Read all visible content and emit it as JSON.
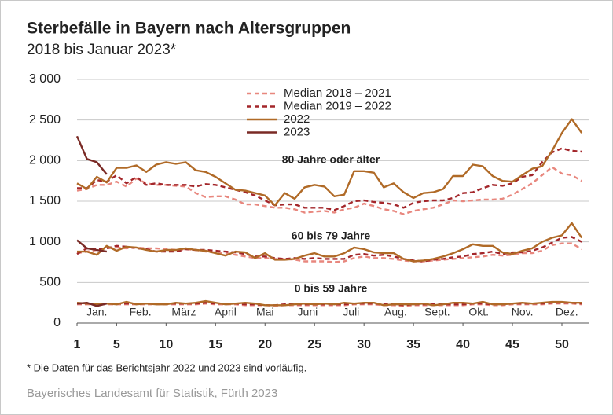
{
  "chart_data": {
    "type": "line",
    "title": "Sterbefälle in Bayern nach Altersgruppen",
    "subtitle": "2018 bis Januar 2023*",
    "footnote": "* Die Daten für das Berichtsjahr 2022 und 2023 sind vorläufig.",
    "source": "Bayerisches Landesamt für Statistik, Fürth 2023",
    "group_labels": [
      "80 Jahre oder älter",
      "60 bis 79 Jahre",
      "0 bis 59 Jahre"
    ],
    "x": [
      1,
      2,
      3,
      4,
      5,
      6,
      7,
      8,
      9,
      10,
      11,
      12,
      13,
      14,
      15,
      16,
      17,
      18,
      19,
      20,
      21,
      22,
      23,
      24,
      25,
      26,
      27,
      28,
      29,
      30,
      31,
      32,
      33,
      34,
      35,
      36,
      37,
      38,
      39,
      40,
      41,
      42,
      43,
      44,
      45,
      46,
      47,
      48,
      49,
      50,
      51,
      52
    ],
    "xlim": [
      1,
      52.7
    ],
    "xticks": [
      1,
      5,
      10,
      15,
      20,
      25,
      30,
      35,
      40,
      45,
      50
    ],
    "months": [
      {
        "value": 3,
        "label": "Jan."
      },
      {
        "value": 7.4,
        "label": "Feb."
      },
      {
        "value": 11.8,
        "label": "März"
      },
      {
        "value": 16,
        "label": "April"
      },
      {
        "value": 20,
        "label": "Mai"
      },
      {
        "value": 24.3,
        "label": "Juni"
      },
      {
        "value": 28.7,
        "label": "Juli"
      },
      {
        "value": 33.2,
        "label": "Aug."
      },
      {
        "value": 37.4,
        "label": "Sept."
      },
      {
        "value": 41.6,
        "label": "Okt."
      },
      {
        "value": 46,
        "label": "Nov."
      },
      {
        "value": 50.5,
        "label": "Dez."
      }
    ],
    "ylim": [
      0,
      3000
    ],
    "yticks": [
      0,
      500,
      {
        "value": 1000,
        "label": "1 000"
      },
      {
        "value": 1500,
        "label": "1 500"
      },
      {
        "value": 2000,
        "label": "2 000"
      },
      {
        "value": 2500,
        "label": "2 500"
      },
      {
        "value": 3000,
        "label": "3 000"
      }
    ],
    "grid": true,
    "series": [
      {
        "name": "Median 2018 – 2021",
        "color": "#e8877e",
        "dashed": true,
        "values": [
          [
            1630,
            1650,
            1700,
            1700,
            1740,
            1680,
            1780,
            1720,
            1700,
            1700,
            1690,
            1680,
            1600,
            1550,
            1560,
            1560,
            1520,
            1460,
            1460,
            1440,
            1420,
            1420,
            1400,
            1360,
            1370,
            1380,
            1360,
            1400,
            1420,
            1470,
            1440,
            1400,
            1380,
            1340,
            1380,
            1400,
            1420,
            1460,
            1510,
            1500,
            1510,
            1520,
            1520,
            1530,
            1580,
            1650,
            1720,
            1820,
            1920,
            1840,
            1820,
            1750
          ],
          [
            860,
            880,
            900,
            920,
            930,
            920,
            930,
            920,
            920,
            910,
            900,
            910,
            900,
            880,
            870,
            860,
            840,
            820,
            800,
            800,
            790,
            790,
            780,
            760,
            760,
            760,
            750,
            760,
            800,
            820,
            800,
            800,
            790,
            770,
            760,
            760,
            770,
            780,
            790,
            800,
            810,
            820,
            840,
            830,
            840,
            860,
            860,
            890,
            960,
            980,
            980,
            910
          ],
          [
            230,
            230,
            230,
            230,
            230,
            230,
            230,
            230,
            230,
            230,
            230,
            230,
            230,
            240,
            230,
            230,
            230,
            220,
            220,
            220,
            210,
            220,
            220,
            220,
            220,
            220,
            220,
            220,
            230,
            230,
            230,
            220,
            220,
            210,
            220,
            220,
            220,
            220,
            220,
            220,
            230,
            230,
            220,
            220,
            230,
            230,
            230,
            230,
            240,
            240,
            240,
            230
          ]
        ]
      },
      {
        "name": "Median 2019 – 2022",
        "color": "#a3262a",
        "dashed": true,
        "values": [
          [
            1660,
            1660,
            1760,
            1740,
            1820,
            1720,
            1800,
            1700,
            1720,
            1700,
            1700,
            1700,
            1680,
            1710,
            1700,
            1670,
            1640,
            1610,
            1570,
            1510,
            1450,
            1460,
            1460,
            1420,
            1420,
            1420,
            1390,
            1440,
            1500,
            1510,
            1490,
            1480,
            1460,
            1420,
            1480,
            1500,
            1510,
            1510,
            1540,
            1600,
            1610,
            1660,
            1700,
            1690,
            1720,
            1800,
            1820,
            1980,
            2100,
            2150,
            2120,
            2110
          ],
          [
            850,
            920,
            910,
            920,
            950,
            940,
            920,
            910,
            880,
            880,
            880,
            910,
            900,
            900,
            890,
            880,
            870,
            850,
            820,
            820,
            800,
            790,
            800,
            790,
            800,
            790,
            790,
            790,
            840,
            850,
            830,
            840,
            820,
            790,
            770,
            760,
            780,
            790,
            810,
            820,
            850,
            860,
            880,
            850,
            870,
            870,
            890,
            930,
            990,
            1050,
            1060,
            1000
          ],
          [
            240,
            240,
            240,
            240,
            240,
            240,
            240,
            240,
            240,
            240,
            240,
            240,
            240,
            250,
            240,
            240,
            240,
            230,
            230,
            220,
            220,
            230,
            230,
            230,
            230,
            230,
            230,
            230,
            240,
            240,
            240,
            230,
            230,
            220,
            230,
            230,
            230,
            230,
            230,
            230,
            240,
            240,
            230,
            230,
            240,
            240,
            240,
            240,
            250,
            250,
            250,
            240
          ]
        ]
      },
      {
        "name": "2022",
        "color": "#b06a27",
        "dashed": false,
        "values": [
          [
            1720,
            1650,
            1800,
            1730,
            1910,
            1910,
            1940,
            1860,
            1950,
            1980,
            1960,
            1980,
            1880,
            1860,
            1800,
            1720,
            1640,
            1630,
            1600,
            1570,
            1450,
            1600,
            1530,
            1670,
            1700,
            1680,
            1560,
            1580,
            1870,
            1870,
            1850,
            1670,
            1720,
            1610,
            1540,
            1600,
            1610,
            1650,
            1810,
            1810,
            1950,
            1930,
            1810,
            1750,
            1740,
            1820,
            1900,
            1930,
            2120,
            2340,
            2510,
            2340
          ],
          [
            880,
            880,
            840,
            950,
            890,
            940,
            930,
            900,
            880,
            900,
            900,
            920,
            900,
            890,
            860,
            830,
            880,
            870,
            800,
            860,
            780,
            780,
            790,
            830,
            860,
            820,
            820,
            860,
            930,
            910,
            870,
            860,
            860,
            790,
            760,
            770,
            790,
            820,
            860,
            910,
            970,
            950,
            950,
            870,
            850,
            890,
            920,
            1000,
            1050,
            1080,
            1230,
            1050
          ],
          [
            250,
            240,
            230,
            240,
            230,
            260,
            230,
            240,
            230,
            230,
            250,
            240,
            250,
            270,
            250,
            230,
            240,
            250,
            240,
            220,
            220,
            220,
            230,
            240,
            230,
            240,
            230,
            250,
            240,
            250,
            250,
            220,
            230,
            230,
            230,
            240,
            220,
            230,
            250,
            250,
            240,
            260,
            230,
            230,
            240,
            250,
            240,
            250,
            260,
            260,
            250,
            250
          ]
        ]
      },
      {
        "name": "2023",
        "color": "#7a2a25",
        "dashed": false,
        "x": [
          1,
          2,
          3,
          4
        ],
        "values": [
          [
            2300,
            2020,
            1980,
            1830
          ],
          [
            1020,
            920,
            900,
            880
          ],
          [
            240,
            250,
            210,
            240
          ]
        ]
      }
    ]
  }
}
